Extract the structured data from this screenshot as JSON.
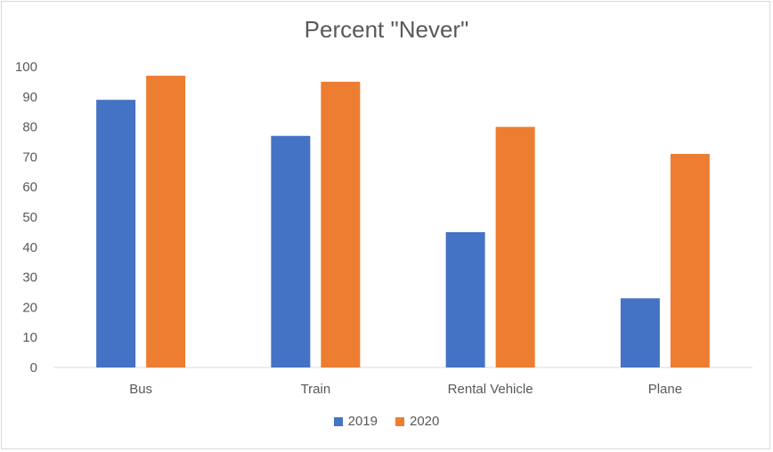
{
  "chart_data": {
    "type": "bar",
    "title": "Percent \"Never\"",
    "categories": [
      "Bus",
      "Train",
      "Rental Vehicle",
      "Plane"
    ],
    "series": [
      {
        "name": "2019",
        "color": "#4472C4",
        "values": [
          89,
          77,
          45,
          23
        ]
      },
      {
        "name": "2020",
        "color": "#ED7D31",
        "values": [
          97,
          95,
          80,
          71
        ]
      }
    ],
    "ylim": [
      0,
      100
    ],
    "yticks": [
      0,
      10,
      20,
      30,
      40,
      50,
      60,
      70,
      80,
      90,
      100
    ],
    "grid": false,
    "legend_position": "bottom"
  }
}
